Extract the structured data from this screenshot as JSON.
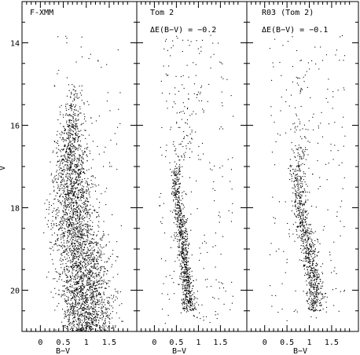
{
  "chart_data": [
    {
      "type": "scatter",
      "title": "F-XMM",
      "annotation": "",
      "xlabel": "B−V",
      "ylabel": "V",
      "xlim": [
        -0.4,
        2.1
      ],
      "ylim": [
        21.0,
        13.0
      ],
      "x_ticks": [
        "0",
        "0.5",
        "1",
        "1.5"
      ],
      "x_tick_values": [
        0,
        0.5,
        1,
        1.5
      ],
      "y_ticks": [
        "14",
        "16",
        "18",
        "20"
      ],
      "y_tick_values": [
        14,
        16,
        18,
        20
      ],
      "density": "very high",
      "envelope": [
        {
          "v": 15.0,
          "blue": 0.55,
          "red": 0.95,
          "n": 40
        },
        {
          "v": 15.5,
          "blue": 0.35,
          "red": 1.05,
          "n": 90
        },
        {
          "v": 16.0,
          "blue": 0.25,
          "red": 1.15,
          "n": 150
        },
        {
          "v": 16.5,
          "blue": 0.15,
          "red": 1.2,
          "n": 200
        },
        {
          "v": 17.0,
          "blue": 0.05,
          "red": 1.3,
          "n": 240
        },
        {
          "v": 17.5,
          "blue": 0.0,
          "red": 1.4,
          "n": 270
        },
        {
          "v": 18.0,
          "blue": 0.0,
          "red": 1.5,
          "n": 290
        },
        {
          "v": 18.5,
          "blue": -0.05,
          "red": 1.6,
          "n": 310
        },
        {
          "v": 19.0,
          "blue": 0.0,
          "red": 1.7,
          "n": 330
        },
        {
          "v": 19.5,
          "blue": 0.05,
          "red": 1.8,
          "n": 350
        },
        {
          "v": 20.0,
          "blue": 0.1,
          "red": 1.85,
          "n": 370
        },
        {
          "v": 20.5,
          "blue": 0.1,
          "red": 1.9,
          "n": 390
        },
        {
          "v": 21.0,
          "blue": 0.15,
          "red": 1.9,
          "n": 400
        }
      ],
      "field_points": 120
    },
    {
      "type": "scatter",
      "title": "Tom 2",
      "annotation": "ΔE(B−V) = −0.2",
      "xlabel": "B−V",
      "ylabel": "",
      "xlim": [
        -0.4,
        2.1
      ],
      "ylim": [
        21.0,
        13.0
      ],
      "x_ticks": [
        "0",
        "0.5",
        "1",
        "1.5"
      ],
      "x_tick_values": [
        0,
        0.5,
        1,
        1.5
      ],
      "y_ticks": [],
      "y_tick_values": [
        14,
        16,
        18,
        20
      ],
      "density": "medium",
      "envelope": [
        {
          "v": 14.0,
          "blue": 0.2,
          "red": 1.3,
          "n": 10
        },
        {
          "v": 15.0,
          "blue": 0.2,
          "red": 1.3,
          "n": 20
        },
        {
          "v": 16.0,
          "blue": 0.25,
          "red": 1.2,
          "n": 35
        },
        {
          "v": 17.0,
          "blue": 0.3,
          "red": 0.7,
          "n": 70
        },
        {
          "v": 17.5,
          "blue": 0.3,
          "red": 0.65,
          "n": 90
        },
        {
          "v": 18.0,
          "blue": 0.35,
          "red": 0.75,
          "n": 110
        },
        {
          "v": 18.5,
          "blue": 0.4,
          "red": 0.8,
          "n": 120
        },
        {
          "v": 19.0,
          "blue": 0.45,
          "red": 0.85,
          "n": 130
        },
        {
          "v": 19.5,
          "blue": 0.5,
          "red": 0.9,
          "n": 140
        },
        {
          "v": 20.0,
          "blue": 0.55,
          "red": 0.95,
          "n": 140
        },
        {
          "v": 20.5,
          "blue": 0.55,
          "red": 1.0,
          "n": 130
        }
      ],
      "field_points": 260
    },
    {
      "type": "scatter",
      "title": "R03 (Tom 2)",
      "annotation": "ΔE(B−V) = −0.1",
      "xlabel": "B−V",
      "ylabel": "",
      "xlim": [
        -0.4,
        2.1
      ],
      "ylim": [
        21.0,
        13.0
      ],
      "x_ticks": [
        "0",
        "0.5",
        "1",
        "1.5"
      ],
      "x_tick_values": [
        0,
        0.5,
        1,
        1.5
      ],
      "y_ticks": [],
      "y_tick_values": [
        14,
        16,
        18,
        20
      ],
      "density": "medium",
      "envelope": [
        {
          "v": 14.5,
          "blue": 0.4,
          "red": 1.0,
          "n": 10
        },
        {
          "v": 15.5,
          "blue": 0.4,
          "red": 1.2,
          "n": 25
        },
        {
          "v": 16.5,
          "blue": 0.45,
          "red": 1.1,
          "n": 50
        },
        {
          "v": 17.0,
          "blue": 0.45,
          "red": 0.95,
          "n": 70
        },
        {
          "v": 17.5,
          "blue": 0.5,
          "red": 1.0,
          "n": 90
        },
        {
          "v": 18.0,
          "blue": 0.55,
          "red": 1.05,
          "n": 105
        },
        {
          "v": 18.5,
          "blue": 0.6,
          "red": 1.15,
          "n": 120
        },
        {
          "v": 19.0,
          "blue": 0.7,
          "red": 1.25,
          "n": 130
        },
        {
          "v": 19.5,
          "blue": 0.75,
          "red": 1.35,
          "n": 140
        },
        {
          "v": 20.0,
          "blue": 0.8,
          "red": 1.4,
          "n": 140
        },
        {
          "v": 20.5,
          "blue": 0.8,
          "red": 1.45,
          "n": 120
        }
      ],
      "field_points": 200
    }
  ]
}
